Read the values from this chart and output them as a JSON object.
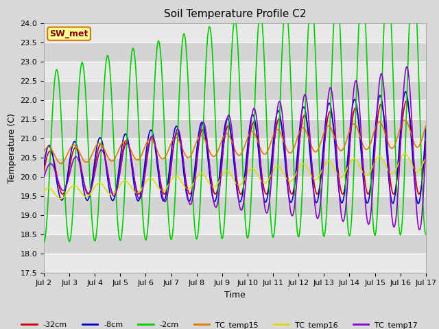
{
  "title": "Soil Temperature Profile C2",
  "xlabel": "Time",
  "ylabel": "Temperature (C)",
  "ylim": [
    17.5,
    24.0
  ],
  "yticks": [
    17.5,
    18.0,
    18.5,
    19.0,
    19.5,
    20.0,
    20.5,
    21.0,
    21.5,
    22.0,
    22.5,
    23.0,
    23.5,
    24.0
  ],
  "xlim": [
    0,
    15
  ],
  "xtick_labels": [
    "Jul 2",
    "Jul 3",
    "Jul 4",
    "Jul 5",
    "Jul 6",
    "Jul 7",
    "Jul 8",
    "Jul 9",
    "Jul 10",
    "Jul 11",
    "Jul 12",
    "Jul 13",
    "Jul 14",
    "Jul 15",
    "Jul 16",
    "Jul 17"
  ],
  "series_labels": [
    "-32cm",
    "-8cm",
    "-2cm",
    "TC_temp15",
    "TC_temp16",
    "TC_temp17"
  ],
  "series_colors": [
    "#cc0000",
    "#0000cc",
    "#00cc00",
    "#dd7700",
    "#dddd00",
    "#8800cc"
  ],
  "annotation_text": "SW_met",
  "annotation_bg": "#ffff99",
  "annotation_border": "#cc7700",
  "annotation_fg": "#880000",
  "fig_facecolor": "#d8d8d8",
  "stripe_light": "#e8e8e8",
  "stripe_dark": "#d4d4d4"
}
